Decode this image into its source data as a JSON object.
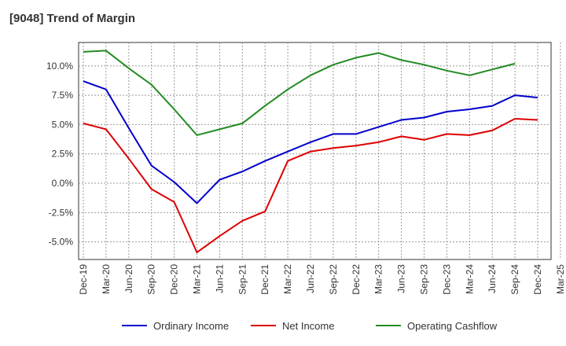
{
  "chart_data": {
    "type": "line",
    "title": "[9048]  Trend of Margin",
    "categories": [
      "Dec-19",
      "Mar-20",
      "Jun-20",
      "Sep-20",
      "Dec-20",
      "Mar-21",
      "Jun-21",
      "Sep-21",
      "Dec-21",
      "Mar-22",
      "Jun-22",
      "Sep-22",
      "Dec-22",
      "Mar-23",
      "Jun-23",
      "Sep-23",
      "Dec-23",
      "Mar-24",
      "Jun-24",
      "Sep-24",
      "Dec-24",
      "Mar-25"
    ],
    "y_ticks": [
      "10.0%",
      "7.5%",
      "5.0%",
      "2.5%",
      "0.0%",
      "-2.5%",
      "-5.0%"
    ],
    "y_tick_values": [
      10,
      7.5,
      5,
      2.5,
      0,
      -2.5,
      -5
    ],
    "ylim": [
      -6.5,
      12
    ],
    "grid": true,
    "legend_position": "bottom",
    "series": [
      {
        "name": "Ordinary Income",
        "color": "#0000cc",
        "values": [
          8.7,
          8.0,
          4.7,
          1.5,
          0.1,
          -1.7,
          0.3,
          1.0,
          1.9,
          2.7,
          3.5,
          4.2,
          4.2,
          4.8,
          5.4,
          5.6,
          6.1,
          6.3,
          6.6,
          7.5,
          7.3,
          null
        ]
      },
      {
        "name": "Net Income",
        "color": "#dd0000",
        "values": [
          5.1,
          4.6,
          2.1,
          -0.5,
          -1.6,
          -5.9,
          -4.5,
          -3.2,
          -2.4,
          1.9,
          2.7,
          3.0,
          3.2,
          3.5,
          4.0,
          3.7,
          4.2,
          4.1,
          4.5,
          5.5,
          5.4,
          null
        ]
      },
      {
        "name": "Operating Cashflow",
        "color": "#228b22",
        "values": [
          11.2,
          11.3,
          9.8,
          8.4,
          6.3,
          4.1,
          4.6,
          5.1,
          6.6,
          8.0,
          9.2,
          10.1,
          10.7,
          11.1,
          10.5,
          10.1,
          9.6,
          9.2,
          9.7,
          10.2,
          null,
          null
        ]
      }
    ]
  }
}
